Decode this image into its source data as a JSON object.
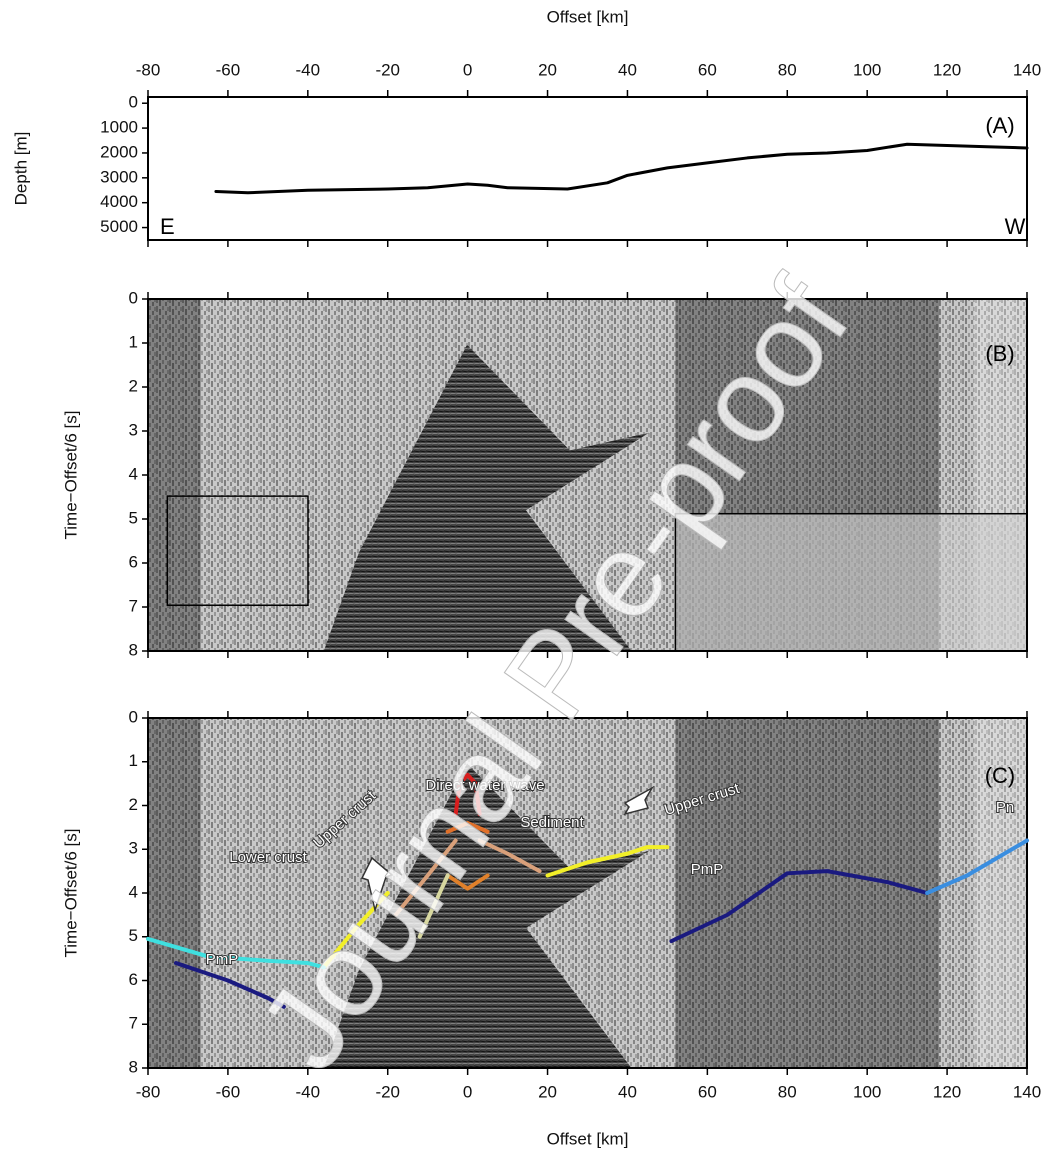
{
  "chart_data": [
    {
      "type": "line",
      "x_label": "Offset [km]",
      "y_label": "Depth [m]",
      "xlim": [
        -80,
        140
      ],
      "xticks": [
        -80,
        -60,
        -40,
        -20,
        0,
        20,
        40,
        60,
        80,
        100,
        120,
        140
      ],
      "ylim": [
        -250,
        5500
      ],
      "y_inverted": true,
      "yticks": [
        0,
        1000,
        2000,
        3000,
        4000,
        5000
      ],
      "series": [
        {
          "color": "#000000",
          "x": [
            -63,
            -55,
            -40,
            -20,
            -10,
            0,
            5,
            10,
            25,
            35,
            40,
            50,
            60,
            70,
            80,
            90,
            100,
            110,
            120,
            130,
            140
          ],
          "values": [
            3550,
            3600,
            3500,
            3450,
            3400,
            3250,
            3300,
            3400,
            3450,
            3200,
            2900,
            2600,
            2400,
            2200,
            2050,
            2000,
            1900,
            1650,
            1700,
            1750,
            1800
          ]
        }
      ],
      "annotations": [
        "(A)",
        "E",
        "W"
      ]
    },
    {
      "type": "image",
      "y_label": "Time−Offset/6 [s]",
      "xlim": [
        -80,
        140
      ],
      "xticks": [
        -80,
        -60,
        -40,
        -20,
        0,
        20,
        40,
        60,
        80,
        100,
        120,
        140
      ],
      "ylim": [
        0,
        8
      ],
      "y_inverted": true,
      "yticks": [
        0,
        1,
        2,
        3,
        4,
        5,
        6,
        7,
        8
      ],
      "annotations": [
        "(B)"
      ]
    },
    {
      "type": "line",
      "x_label": "Offset [km]",
      "y_label": "Time−Offset/6 [s]",
      "xlim": [
        -80,
        140
      ],
      "xticks": [
        -80,
        -60,
        -40,
        -20,
        0,
        20,
        40,
        60,
        80,
        100,
        120,
        140
      ],
      "ylim": [
        0,
        8
      ],
      "y_inverted": true,
      "yticks": [
        0,
        1,
        2,
        3,
        4,
        5,
        6,
        7,
        8
      ],
      "series": [
        {
          "color": "#d81e1e",
          "x": [
            -3,
            -2,
            0,
            2,
            3
          ],
          "values": [
            2.2,
            1.5,
            1.3,
            1.5,
            2.2
          ]
        },
        {
          "color": "#e0702a",
          "x": [
            -5,
            0,
            5
          ],
          "values": [
            2.6,
            2.4,
            2.6
          ]
        },
        {
          "color": "#e0802a",
          "x": [
            -5,
            0,
            5
          ],
          "values": [
            3.6,
            3.9,
            3.6
          ]
        },
        {
          "color": "#d9a07a",
          "x": [
            -18,
            -10,
            -3
          ],
          "values": [
            4.5,
            3.6,
            2.8
          ]
        },
        {
          "color": "#d9a07a",
          "x": [
            3,
            10,
            18
          ],
          "values": [
            2.8,
            3.1,
            3.5
          ]
        },
        {
          "color": "#d8d8a0",
          "x": [
            -12,
            -5
          ],
          "values": [
            5.0,
            3.6
          ]
        },
        {
          "color": "#f2ef28",
          "x": [
            -36,
            -28,
            -20
          ],
          "values": [
            5.7,
            4.8,
            4.0
          ]
        },
        {
          "color": "#f2ef28",
          "x": [
            20,
            30,
            40,
            45,
            50
          ],
          "values": [
            3.6,
            3.3,
            3.1,
            2.95,
            2.95
          ]
        },
        {
          "color": "#3fe0e0",
          "x": [
            -80,
            -65,
            -50,
            -40,
            -36
          ],
          "values": [
            5.05,
            5.45,
            5.55,
            5.6,
            5.7
          ]
        },
        {
          "color": "#1a1a80",
          "x": [
            -73,
            -60,
            -50,
            -46
          ],
          "values": [
            5.6,
            6.0,
            6.4,
            6.6
          ]
        },
        {
          "color": "#1a1a80",
          "x": [
            51,
            65,
            80,
            90,
            105,
            115
          ],
          "values": [
            5.1,
            4.5,
            3.55,
            3.5,
            3.75,
            4.0
          ]
        },
        {
          "color": "#3a8ee0",
          "x": [
            115,
            125,
            140
          ],
          "values": [
            4.0,
            3.6,
            2.8
          ]
        }
      ],
      "annotations": [
        "(C)",
        "Direct water wave",
        "Sediment",
        "Upper crust",
        "Upper crust",
        "Lower crust",
        "PmP",
        "PmP",
        "Pn"
      ]
    }
  ],
  "watermark": "Journal Pre-proof"
}
